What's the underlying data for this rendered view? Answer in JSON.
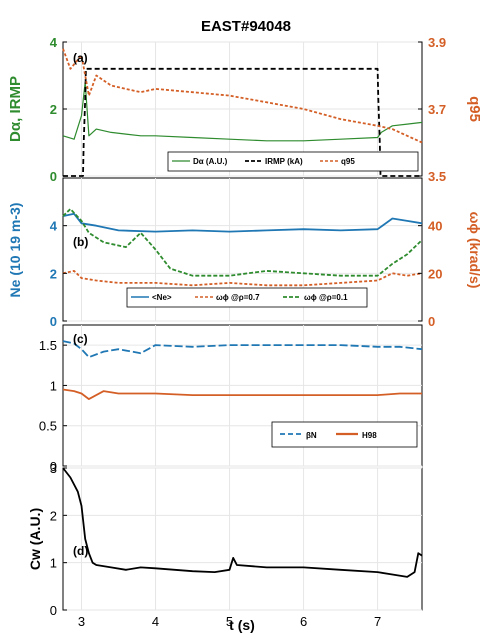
{
  "figure_title": "EAST#94048",
  "x_axis_label": "t (s)",
  "colors": {
    "green": "#2e8b2e",
    "orange": "#d45f26",
    "blue": "#1f77b4",
    "black": "#000000",
    "grid": "#e6e6e6"
  },
  "chart_data": [
    {
      "type": "line",
      "panel": "(a)",
      "x_label": "t (s)",
      "ylabel_left": "Dα, IRMP",
      "ylabel_right": "q95",
      "ylim_left": [
        0,
        4
      ],
      "ylim_right": [
        3.5,
        3.9
      ],
      "xlim": [
        2.75,
        7.6
      ],
      "left_ticks": [
        "0",
        "2",
        "4"
      ],
      "right_ticks": [
        "3.5",
        "3.7",
        "3.9"
      ],
      "legend": [
        "Dα (A.U.)",
        "IRMP (kA)",
        "q95"
      ],
      "series": [
        {
          "name": "Dα (A.U.)",
          "axis": "left",
          "color": "#2e8b2e",
          "x": [
            2.75,
            2.9,
            3.0,
            3.05,
            3.1,
            3.2,
            3.4,
            3.6,
            3.8,
            4.0,
            4.5,
            5.0,
            5.5,
            6.0,
            6.5,
            7.0,
            7.05,
            7.2,
            7.4,
            7.6
          ],
          "y": [
            1.2,
            1.1,
            1.8,
            2.8,
            1.2,
            1.4,
            1.3,
            1.25,
            1.2,
            1.2,
            1.15,
            1.1,
            1.05,
            1.05,
            1.1,
            1.15,
            1.3,
            1.5,
            1.55,
            1.6
          ]
        },
        {
          "name": "IRMP (kA)",
          "axis": "left",
          "color": "#000000",
          "x": [
            2.75,
            3.02,
            3.03,
            3.05,
            3.06,
            7.0,
            7.01,
            7.03,
            7.04,
            7.6
          ],
          "y": [
            0,
            0,
            1,
            2.3,
            3.2,
            3.2,
            2.3,
            1,
            0,
            0
          ]
        },
        {
          "name": "q95",
          "axis": "right",
          "color": "#d45f26",
          "x": [
            2.75,
            2.85,
            3.0,
            3.1,
            3.2,
            3.4,
            3.6,
            3.8,
            4.0,
            4.5,
            5.0,
            5.5,
            6.0,
            6.5,
            7.0,
            7.2,
            7.4,
            7.6
          ],
          "y": [
            3.88,
            3.82,
            3.86,
            3.74,
            3.8,
            3.77,
            3.76,
            3.75,
            3.76,
            3.75,
            3.74,
            3.72,
            3.7,
            3.67,
            3.65,
            3.64,
            3.62,
            3.6
          ]
        }
      ]
    },
    {
      "type": "line",
      "panel": "(b)",
      "x_label": "t (s)",
      "ylabel_left": "Ne (10 19 m-3)",
      "ylabel_right": "ωϕ (krad/s)",
      "ylim_left": [
        0,
        6
      ],
      "ylim_right": [
        0,
        60
      ],
      "xlim": [
        2.75,
        7.6
      ],
      "left_ticks": [
        "0",
        "2",
        "4"
      ],
      "right_ticks": [
        "0",
        "20",
        "40"
      ],
      "legend": [
        "<Ne>",
        "ωϕ @ρ=0.7",
        "ωϕ @ρ=0.1"
      ],
      "series": [
        {
          "name": "<Ne>",
          "axis": "left",
          "color": "#1f77b4",
          "x": [
            2.75,
            2.9,
            3.0,
            3.2,
            3.5,
            4.0,
            4.5,
            5.0,
            5.5,
            6.0,
            6.5,
            7.0,
            7.2,
            7.4,
            7.6
          ],
          "y": [
            4.4,
            4.5,
            4.1,
            4.0,
            3.8,
            3.75,
            3.8,
            3.75,
            3.8,
            3.85,
            3.8,
            3.85,
            4.3,
            4.2,
            4.1
          ]
        },
        {
          "name": "ωϕ @ρ=0.7",
          "axis": "right",
          "color": "#d45f26",
          "x": [
            2.75,
            2.9,
            3.0,
            3.2,
            3.5,
            4.0,
            4.5,
            5.0,
            5.5,
            6.0,
            6.5,
            7.0,
            7.2,
            7.4,
            7.6
          ],
          "y": [
            20,
            21,
            18,
            17,
            16,
            16,
            15,
            16,
            15,
            15,
            16,
            17,
            20,
            19,
            20
          ]
        },
        {
          "name": "ωϕ @ρ=0.1",
          "axis": "right",
          "color": "#2e8b2e",
          "x": [
            2.75,
            2.85,
            3.0,
            3.1,
            3.3,
            3.6,
            3.8,
            4.0,
            4.2,
            4.5,
            5.0,
            5.5,
            6.0,
            6.5,
            7.0,
            7.2,
            7.4,
            7.6
          ],
          "y": [
            44,
            47,
            42,
            37,
            33,
            31,
            37,
            30,
            22,
            19,
            19,
            21,
            20,
            19,
            19,
            24,
            28,
            34
          ]
        }
      ]
    },
    {
      "type": "line",
      "panel": "(c)",
      "x_label": "t (s)",
      "ylim": [
        0,
        1.75
      ],
      "xlim": [
        2.75,
        7.6
      ],
      "y_ticks": [
        "0",
        "0.5",
        "1",
        "1.5"
      ],
      "legend": [
        "βN",
        "H98"
      ],
      "series": [
        {
          "name": "βN",
          "color": "#1f77b4",
          "x": [
            2.75,
            2.9,
            3.0,
            3.1,
            3.3,
            3.5,
            3.8,
            4.0,
            4.5,
            5.0,
            5.5,
            6.0,
            6.5,
            7.0,
            7.3,
            7.6
          ],
          "y": [
            1.55,
            1.52,
            1.45,
            1.35,
            1.42,
            1.45,
            1.4,
            1.5,
            1.48,
            1.5,
            1.5,
            1.5,
            1.5,
            1.48,
            1.48,
            1.45
          ]
        },
        {
          "name": "H98",
          "color": "#d45f26",
          "x": [
            2.75,
            2.9,
            3.0,
            3.1,
            3.3,
            3.5,
            4.0,
            4.5,
            5.0,
            5.5,
            6.0,
            6.5,
            7.0,
            7.3,
            7.6
          ],
          "y": [
            0.95,
            0.93,
            0.9,
            0.83,
            0.93,
            0.9,
            0.9,
            0.88,
            0.88,
            0.88,
            0.88,
            0.88,
            0.88,
            0.9,
            0.9
          ]
        }
      ]
    },
    {
      "type": "line",
      "panel": "(d)",
      "x_label": "t (s)",
      "ylabel": "Cw (A.U.)",
      "ylim": [
        0,
        3
      ],
      "xlim": [
        2.75,
        7.6
      ],
      "y_ticks": [
        "0",
        "1",
        "2",
        "3"
      ],
      "x_ticks": [
        "3",
        "4",
        "5",
        "6",
        "7"
      ],
      "series": [
        {
          "name": "Cw",
          "color": "#000000",
          "x": [
            2.75,
            2.85,
            2.95,
            3.0,
            3.05,
            3.1,
            3.15,
            3.2,
            3.4,
            3.6,
            3.8,
            4.0,
            4.5,
            4.8,
            5.0,
            5.05,
            5.1,
            5.5,
            6.0,
            6.5,
            7.0,
            7.2,
            7.4,
            7.5,
            7.55,
            7.6
          ],
          "y": [
            3.0,
            2.8,
            2.5,
            2.2,
            1.5,
            1.2,
            1.0,
            0.95,
            0.9,
            0.85,
            0.9,
            0.88,
            0.82,
            0.8,
            0.85,
            1.1,
            0.95,
            0.9,
            0.9,
            0.85,
            0.8,
            0.75,
            0.7,
            0.8,
            1.2,
            1.15
          ]
        }
      ]
    }
  ]
}
